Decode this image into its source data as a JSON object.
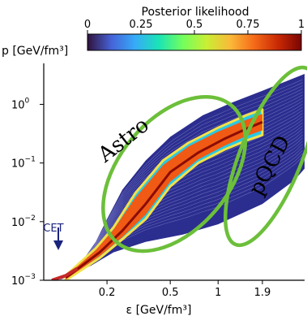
{
  "chart_data": {
    "type": "line",
    "xlabel": "ε [GeV/fm³]",
    "ylabel": "p [GeV/fm³]",
    "xscale": "log",
    "yscale": "log",
    "xlim": [
      0.08,
      3.5
    ],
    "ylim": [
      0.001,
      5
    ],
    "xticks": [
      {
        "value": 0.2,
        "label": "0.2"
      },
      {
        "value": 0.5,
        "label": "0.5"
      },
      {
        "value": 1,
        "label": "1"
      },
      {
        "value": 1.9,
        "label": "1.9"
      }
    ],
    "yticks": [
      {
        "value": 0.001,
        "base": "10",
        "exp": "−3"
      },
      {
        "value": 0.01,
        "base": "10",
        "exp": "−2"
      },
      {
        "value": 0.1,
        "base": "10",
        "exp": "−1"
      },
      {
        "value": 1,
        "base": "10",
        "exp": "0"
      }
    ],
    "colorbar": {
      "title": "Posterior likelihood",
      "ticks": [
        "0",
        "0.25",
        "0.5",
        "0.75",
        "1"
      ],
      "colormap": "turbo",
      "colors": [
        "#30123b",
        "#4662d7",
        "#36aaf9",
        "#1ae4b6",
        "#72fe5e",
        "#c8ef34",
        "#faba39",
        "#f66b19",
        "#ca2a04",
        "#7a0403"
      ]
    },
    "envelope": {
      "color": "#2b2d8f",
      "upper": [
        [
          0.13,
          0.0016
        ],
        [
          0.17,
          0.0045
        ],
        [
          0.2,
          0.011
        ],
        [
          0.25,
          0.035
        ],
        [
          0.35,
          0.11
        ],
        [
          0.5,
          0.28
        ],
        [
          0.8,
          0.65
        ],
        [
          1.2,
          1.05
        ],
        [
          1.9,
          1.7
        ],
        [
          3.5,
          3.3
        ]
      ],
      "lower": [
        [
          0.1,
          0.001
        ],
        [
          0.16,
          0.0018
        ],
        [
          0.22,
          0.003
        ],
        [
          0.35,
          0.0045
        ],
        [
          0.6,
          0.006
        ],
        [
          1.0,
          0.009
        ],
        [
          1.9,
          0.02
        ],
        [
          3.0,
          0.05
        ],
        [
          3.5,
          0.08
        ]
      ]
    },
    "credible_band": {
      "color": "#f05a14",
      "upper": [
        [
          0.11,
          0.0012
        ],
        [
          0.17,
          0.0035
        ],
        [
          0.22,
          0.008
        ],
        [
          0.3,
          0.03
        ],
        [
          0.45,
          0.11
        ],
        [
          0.65,
          0.22
        ],
        [
          1.0,
          0.4
        ],
        [
          1.5,
          0.65
        ],
        [
          1.9,
          0.82
        ]
      ],
      "lower": [
        [
          0.11,
          0.001
        ],
        [
          0.18,
          0.0024
        ],
        [
          0.25,
          0.005
        ],
        [
          0.35,
          0.011
        ],
        [
          0.5,
          0.04
        ],
        [
          0.75,
          0.1
        ],
        [
          1.1,
          0.17
        ],
        [
          1.5,
          0.24
        ],
        [
          1.9,
          0.3
        ]
      ]
    },
    "median": [
      [
        0.11,
        0.0011
      ],
      [
        0.18,
        0.003
      ],
      [
        0.25,
        0.007
      ],
      [
        0.35,
        0.02
      ],
      [
        0.5,
        0.07
      ],
      [
        0.75,
        0.15
      ],
      [
        1.1,
        0.26
      ],
      [
        1.5,
        0.38
      ],
      [
        1.9,
        0.5
      ]
    ],
    "cet_segment": [
      [
        0.09,
        0.001
      ],
      [
        0.11,
        0.0012
      ],
      [
        0.13,
        0.0016
      ]
    ],
    "annotations": [
      {
        "text": "Astro",
        "x": 0.27,
        "y": 0.2,
        "rotation": -38
      },
      {
        "text": "pQCD",
        "x": 2.3,
        "y": 0.08,
        "rotation": -62
      },
      {
        "text": "CET",
        "x": 0.092,
        "y": 0.0068
      }
    ],
    "regions": [
      {
        "label": "Astro",
        "cx": 0.53,
        "cy": 0.065,
        "rx": 68,
        "ry": 110,
        "angle": 40,
        "color": "#6cbf3a"
      },
      {
        "label": "pQCD",
        "cx": 2.15,
        "cy": 0.13,
        "rx": 38,
        "ry": 117,
        "angle": 22,
        "color": "#6cbf3a"
      }
    ]
  }
}
